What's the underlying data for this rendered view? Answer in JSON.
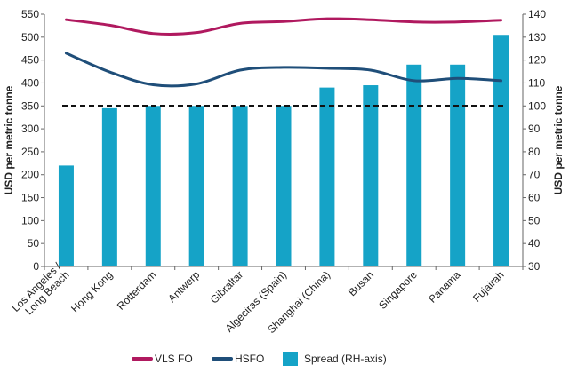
{
  "chart_data": {
    "type": "bar",
    "categories": [
      "Los Angeles /\nLong Beach",
      "Hong Kong",
      "Rotterdam",
      "Antwerp",
      "Gibraltar",
      "Algeciras (Spain)",
      "Shanghai (China)",
      "Busan",
      "Singapore",
      "Panama",
      "Fujairah"
    ],
    "ylabel": "USD per metric tonne",
    "y2label": "USD per metric tonne",
    "ylim": [
      0,
      550
    ],
    "y2lim": [
      30,
      140
    ],
    "yticks": [
      0,
      50,
      100,
      150,
      200,
      250,
      300,
      350,
      400,
      450,
      500,
      550
    ],
    "y2ticks": [
      30,
      40,
      50,
      60,
      70,
      80,
      90,
      100,
      110,
      120,
      130,
      140
    ],
    "grid": false,
    "legend_position": "bottom",
    "reference_line": {
      "axis": "right",
      "value": 100,
      "style": "dashed"
    },
    "series": [
      {
        "name": "VLS FO",
        "type": "line",
        "axis": "left",
        "color": "#b0195f",
        "values": [
          538,
          526,
          508,
          510,
          530,
          534,
          540,
          538,
          533,
          533,
          537
        ]
      },
      {
        "name": "HSFO",
        "type": "line",
        "axis": "left",
        "color": "#1f4e79",
        "values": [
          465,
          424,
          396,
          398,
          428,
          434,
          432,
          428,
          405,
          410,
          405
        ]
      },
      {
        "name": "Spread (RH-axis)",
        "type": "bar",
        "axis": "right",
        "color": "#15a3c7",
        "values": [
          74,
          99,
          100,
          100,
          100,
          100,
          108,
          109,
          118,
          118,
          131
        ]
      }
    ]
  }
}
